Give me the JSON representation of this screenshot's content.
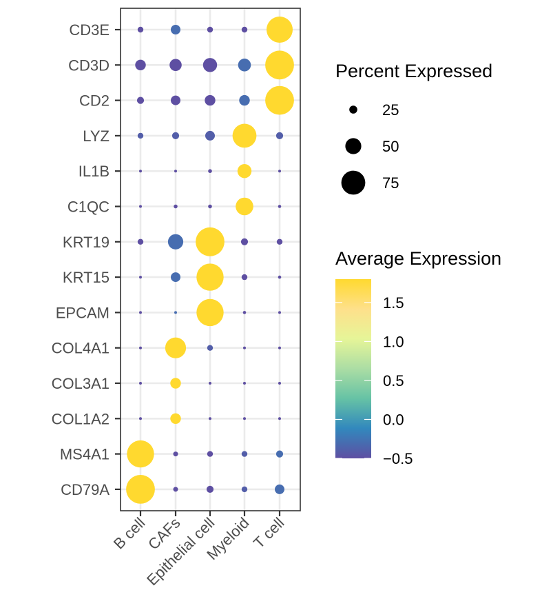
{
  "chart_data": {
    "type": "dotplot",
    "title": "",
    "xlabel": "",
    "ylabel": "",
    "categories": [
      "B cell",
      "CAFs",
      "Epithelial cell",
      "Myeloid",
      "T cell"
    ],
    "genes": [
      "CD3E",
      "CD3D",
      "CD2",
      "LYZ",
      "IL1B",
      "C1QC",
      "KRT19",
      "KRT15",
      "EPCAM",
      "COL4A1",
      "COL3A1",
      "COL1A2",
      "MS4A1",
      "CD79A"
    ],
    "percent_expressed": [
      [
        18,
        30,
        18,
        18,
        82
      ],
      [
        33,
        38,
        44,
        40,
        90
      ],
      [
        22,
        30,
        33,
        33,
        90
      ],
      [
        18,
        22,
        30,
        75,
        22
      ],
      [
        5,
        8,
        12,
        44,
        5
      ],
      [
        8,
        12,
        12,
        55,
        10
      ],
      [
        18,
        48,
        90,
        22,
        18
      ],
      [
        8,
        30,
        85,
        18,
        10
      ],
      [
        5,
        8,
        85,
        10,
        8
      ],
      [
        5,
        65,
        18,
        5,
        5
      ],
      [
        5,
        33,
        5,
        5,
        5
      ],
      [
        5,
        33,
        5,
        5,
        5
      ],
      [
        85,
        15,
        18,
        18,
        22
      ],
      [
        90,
        15,
        22,
        18,
        30
      ]
    ],
    "average_expression": [
      [
        -0.5,
        -0.3,
        -0.5,
        -0.5,
        1.8
      ],
      [
        -0.5,
        -0.5,
        -0.5,
        -0.3,
        1.8
      ],
      [
        -0.5,
        -0.5,
        -0.5,
        -0.3,
        1.8
      ],
      [
        -0.4,
        -0.4,
        -0.4,
        1.8,
        -0.4
      ],
      [
        -0.5,
        -0.5,
        -0.5,
        1.8,
        -0.5
      ],
      [
        -0.5,
        -0.5,
        -0.5,
        1.8,
        -0.5
      ],
      [
        -0.5,
        -0.3,
        1.8,
        -0.5,
        -0.5
      ],
      [
        -0.5,
        -0.3,
        1.8,
        -0.5,
        -0.5
      ],
      [
        -0.5,
        -0.3,
        1.8,
        -0.5,
        -0.5
      ],
      [
        -0.5,
        1.8,
        -0.4,
        -0.5,
        -0.5
      ],
      [
        -0.5,
        1.8,
        -0.5,
        -0.5,
        -0.5
      ],
      [
        -0.5,
        1.8,
        -0.5,
        -0.5,
        -0.5
      ],
      [
        1.8,
        -0.5,
        -0.5,
        -0.4,
        -0.3
      ],
      [
        1.8,
        -0.5,
        -0.5,
        -0.4,
        -0.3
      ]
    ],
    "size_legend": {
      "title": "Percent Expressed",
      "breaks": [
        25,
        50,
        75
      ],
      "labels": [
        "25",
        "50",
        "75"
      ]
    },
    "color_legend": {
      "title": "Average Expression",
      "breaks": [
        -0.5,
        0.0,
        0.5,
        1.0,
        1.5
      ],
      "labels": [
        "−0.5",
        "0.0",
        "0.5",
        "1.0",
        "1.5"
      ],
      "range": [
        -0.5,
        1.8
      ],
      "colors": [
        "#5E4FA2",
        "#3288BD",
        "#66C2A5",
        "#ABDDA4",
        "#E6F598",
        "#FEE08B",
        "#FFD92F"
      ]
    },
    "grid": true,
    "legend_position": "right"
  }
}
